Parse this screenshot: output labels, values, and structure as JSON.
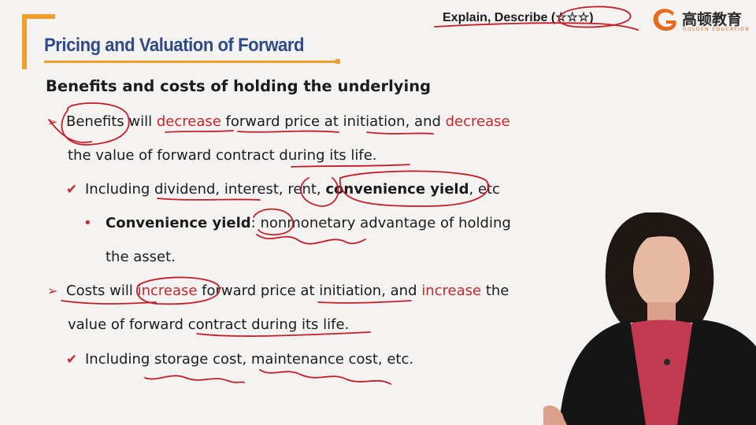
{
  "header": {
    "title": "Pricing and Valuation of Forward",
    "tag_prefix": "Explain, Describe (",
    "tag_stars": "☆☆☆",
    "tag_suffix": ")"
  },
  "logo": {
    "chinese": "高顿教育",
    "english": "GOLDEN EDUCATION"
  },
  "content": {
    "subtitle": "Benefits and costs of holding the underlying",
    "benefits": {
      "l1_a": "Benefits will ",
      "l1_b": "decrease",
      "l1_c": " forward price at initiation, and ",
      "l1_d": "decrease",
      "l2": "the value of forward contract during its life.",
      "check_a": "Including dividend, interest, rent, ",
      "check_b": "convenience yield",
      "check_c": ", etc",
      "bullet_a": "Convenience yield",
      "bullet_b": ": nonmonetary advantage of holding",
      "bullet_c": "the asset."
    },
    "costs": {
      "l1_a": "Costs will ",
      "l1_b": "increase",
      "l1_c": " forward price at initiation, and ",
      "l1_d": "increase",
      "l1_e": " the",
      "l2": "value of forward contract during its life.",
      "check": "Including storage cost, maintenance cost, etc."
    }
  },
  "colors": {
    "accent_orange": "#f0a02a",
    "title_blue": "#2f4b86",
    "emphasis_red": "#c9262c"
  }
}
